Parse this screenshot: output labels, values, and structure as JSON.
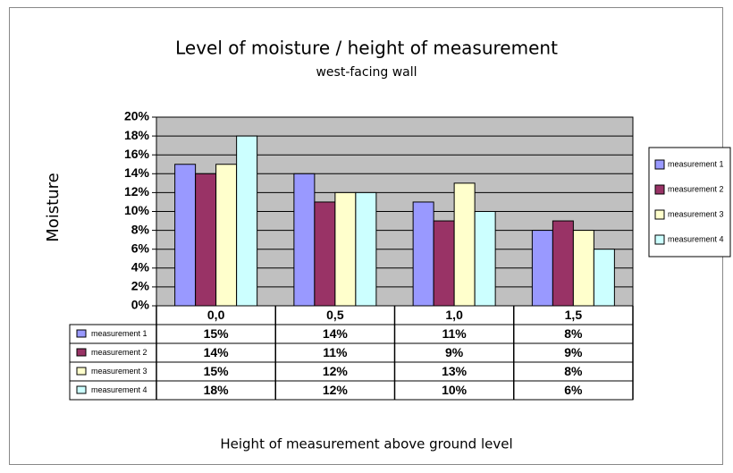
{
  "chart_data": {
    "type": "bar",
    "title": "Level of moisture / height of measurement",
    "subtitle": "west-facing wall",
    "y_label": "Moisture",
    "x_label": "Height of measurement above ground level",
    "categories": [
      "0,0",
      "0,5",
      "1,0",
      "1,5"
    ],
    "series": [
      {
        "name": "measurement 1",
        "color": "#9999ff",
        "values": [
          15,
          14,
          11,
          8
        ],
        "value_labels": [
          "15%",
          "14%",
          "11%",
          "8%"
        ]
      },
      {
        "name": "measurement 2",
        "color": "#993366",
        "values": [
          14,
          11,
          9,
          9
        ],
        "value_labels": [
          "14%",
          "11%",
          "9%",
          "9%"
        ]
      },
      {
        "name": "measurement 3",
        "color": "#ffffcc",
        "values": [
          15,
          12,
          13,
          8
        ],
        "value_labels": [
          "15%",
          "12%",
          "13%",
          "8%"
        ]
      },
      {
        "name": "measurement 4",
        "color": "#ccffff",
        "values": [
          18,
          12,
          10,
          6
        ],
        "value_labels": [
          "18%",
          "12%",
          "10%",
          "6%"
        ]
      }
    ],
    "ylim": [
      0,
      20
    ],
    "yticks": [
      {
        "value": 0,
        "label": "0%"
      },
      {
        "value": 2,
        "label": "2%"
      },
      {
        "value": 4,
        "label": "4%"
      },
      {
        "value": 6,
        "label": "6%"
      },
      {
        "value": 8,
        "label": "8%"
      },
      {
        "value": 10,
        "label": "10%"
      },
      {
        "value": 12,
        "label": "12%"
      },
      {
        "value": 14,
        "label": "14%"
      },
      {
        "value": 16,
        "label": "16%"
      },
      {
        "value": 18,
        "label": "18%"
      },
      {
        "value": 20,
        "label": "20%"
      }
    ],
    "grid": true,
    "plot_background": "#c0c0c0",
    "legend": "right"
  }
}
